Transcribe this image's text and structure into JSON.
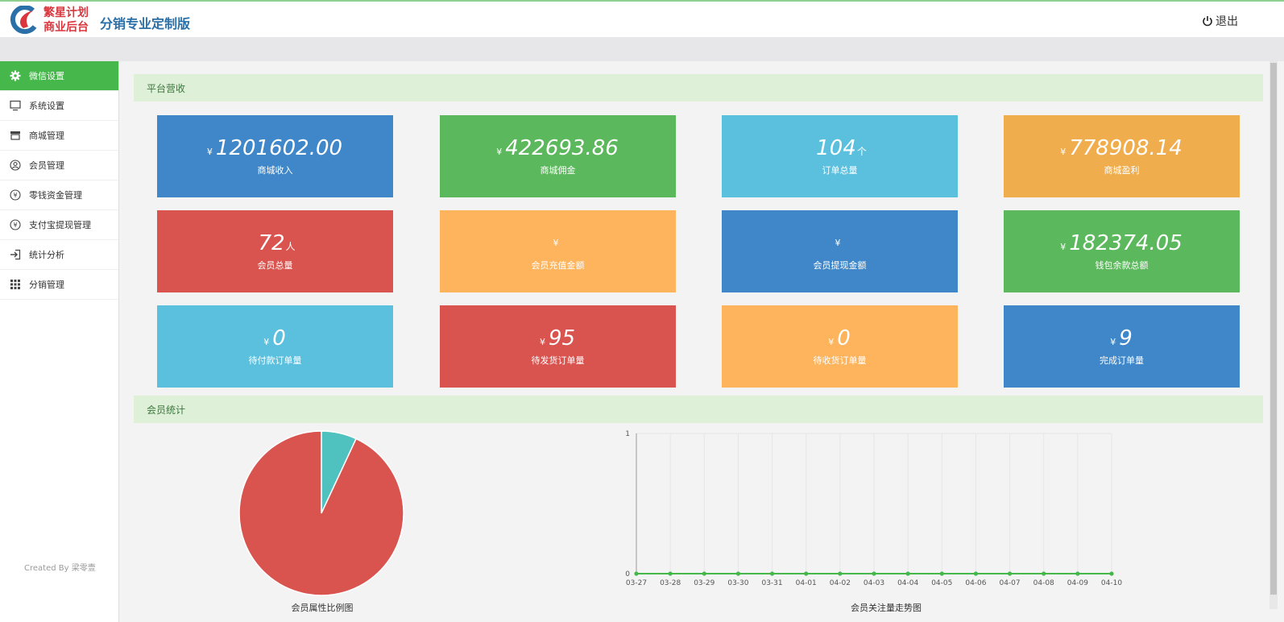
{
  "header": {
    "logo_line1": "繁星计划",
    "logo_line2": "商业后台",
    "subtitle": "分销专业定制版",
    "logout": "退出"
  },
  "sidebar": {
    "items": [
      {
        "label": "微信设置",
        "icon": "gear-icon"
      },
      {
        "label": "系统设置",
        "icon": "monitor-icon"
      },
      {
        "label": "商城管理",
        "icon": "store-icon"
      },
      {
        "label": "会员管理",
        "icon": "user-icon"
      },
      {
        "label": "零钱资金管理",
        "icon": "yen-icon"
      },
      {
        "label": "支付宝提现管理",
        "icon": "yen-icon"
      },
      {
        "label": "统计分析",
        "icon": "sign-in-icon"
      },
      {
        "label": "分销管理",
        "icon": "grid-icon"
      }
    ],
    "credit": "Created By 梁零壹"
  },
  "sections": {
    "revenue": "平台营收",
    "members": "会员统计"
  },
  "cards": [
    {
      "currency": "¥",
      "value": "1201602.00",
      "unit": "",
      "label": "商城收入",
      "color": "#3f87c8"
    },
    {
      "currency": "¥",
      "value": "422693.86",
      "unit": "",
      "label": "商城佣金",
      "color": "#5cb85c"
    },
    {
      "currency": "",
      "value": "104",
      "unit": "个",
      "label": "订单总量",
      "color": "#5bc0de"
    },
    {
      "currency": "¥",
      "value": "778908.14",
      "unit": "",
      "label": "商城盈利",
      "color": "#f0ad4e"
    },
    {
      "currency": "",
      "value": "72",
      "unit": "人",
      "label": "会员总量",
      "color": "#d9534f"
    },
    {
      "currency": "¥",
      "value": "",
      "unit": "",
      "label": "会员充值金额",
      "color": "#fdb45c"
    },
    {
      "currency": "¥",
      "value": "",
      "unit": "",
      "label": "会员提现金额",
      "color": "#3f87c8"
    },
    {
      "currency": "¥",
      "value": "182374.05",
      "unit": "",
      "label": "钱包余款总额",
      "color": "#5cb85c"
    },
    {
      "currency": "¥",
      "value": "0",
      "unit": "",
      "label": "待付款订单量",
      "color": "#5bc0de"
    },
    {
      "currency": "¥",
      "value": "95",
      "unit": "",
      "label": "待发货订单量",
      "color": "#d9534f"
    },
    {
      "currency": "¥",
      "value": "0",
      "unit": "",
      "label": "待收货订单量",
      "color": "#fdb45c"
    },
    {
      "currency": "¥",
      "value": "9",
      "unit": "",
      "label": "完成订单量",
      "color": "#3f87c8"
    }
  ],
  "chart_data": [
    {
      "type": "pie",
      "title": "会员属性比例图",
      "values": [
        67,
        5
      ],
      "colors": [
        "#d9534f",
        "#4fc1be"
      ]
    },
    {
      "type": "line",
      "title": "会员关注量走势图",
      "x": [
        "03-27",
        "03-28",
        "03-29",
        "03-30",
        "03-31",
        "04-01",
        "04-02",
        "04-03",
        "04-04",
        "04-05",
        "04-06",
        "04-07",
        "04-08",
        "04-09",
        "04-10"
      ],
      "series": [
        {
          "values": [
            0,
            0,
            0,
            0,
            0,
            0,
            0,
            0,
            0,
            0,
            0,
            0,
            0,
            0,
            0
          ]
        }
      ],
      "ylim": [
        0,
        1
      ],
      "yticks": [
        "0",
        "1"
      ],
      "color": "#46b84b",
      "grid": true
    }
  ]
}
